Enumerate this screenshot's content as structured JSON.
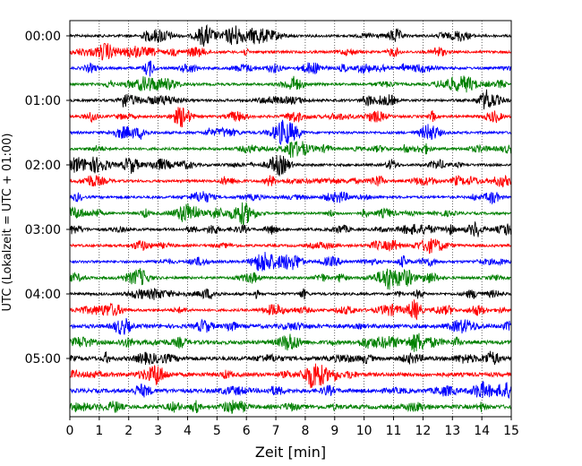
{
  "chart_data": {
    "type": "line",
    "xlabel": "Zeit  [min]",
    "ylabel": "UTC (Lokalzeit = UTC + 01:00)",
    "xlim": [
      0,
      15
    ],
    "x_ticks": [
      "0",
      "1",
      "2",
      "3",
      "4",
      "5",
      "6",
      "7",
      "8",
      "9",
      "10",
      "11",
      "12",
      "13",
      "14",
      "15"
    ],
    "y_ticks": [
      "00:00",
      "01:00",
      "02:00",
      "03:00",
      "04:00",
      "05:00"
    ],
    "trace_interval_min": 15,
    "trace_count": 24,
    "trace_colors": [
      "#000000",
      "#ff0000",
      "#0000ff",
      "#008000"
    ],
    "grid": "vertical dotted",
    "legend": "none"
  }
}
